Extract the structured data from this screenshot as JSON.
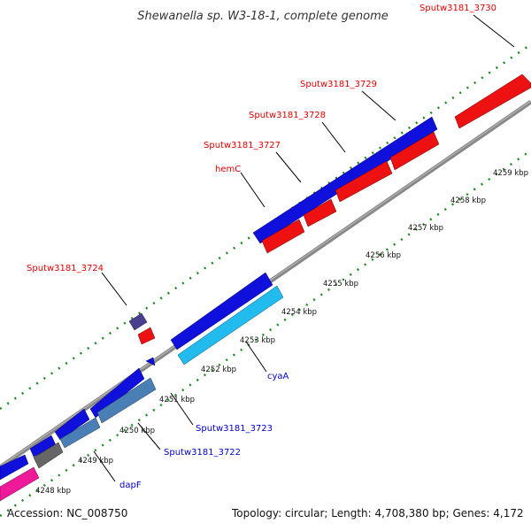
{
  "title": "Shewanella sp. W3-18-1, complete genome",
  "footer": {
    "accession": "Accession: NC_008750",
    "summary": "Topology: circular; Length: 4,708,380 bp; Genes: 4,172"
  },
  "colors": {
    "forward_gene": "#1010dd",
    "reverse_gene": "#ee1111",
    "cyan_gene": "#22bbee",
    "steel_gene": "#4a7fb5",
    "pink_gene": "#ee1a9a",
    "gray_gene": "#666666",
    "purple_gene": "#4a3f8f",
    "backbone": "#888888",
    "ticks": "#1a8a1a"
  },
  "kbp_labels": [
    "4248 kbp",
    "4249 kbp",
    "4250 kbp",
    "4251 kbp",
    "4252 kbp",
    "4253 kbp",
    "4254 kbp",
    "4255 kbp",
    "4256 kbp",
    "4257 kbp",
    "4258 kbp",
    "4259 kbp"
  ],
  "red_labels": [
    "Sputw3181_3730",
    "Sputw3181_3729",
    "Sputw3181_3728",
    "Sputw3181_3727",
    "hemC",
    "Sputw3181_3724"
  ],
  "blue_labels": [
    "cyaA",
    "Sputw3181_3723",
    "Sputw3181_3722",
    "dapF"
  ]
}
